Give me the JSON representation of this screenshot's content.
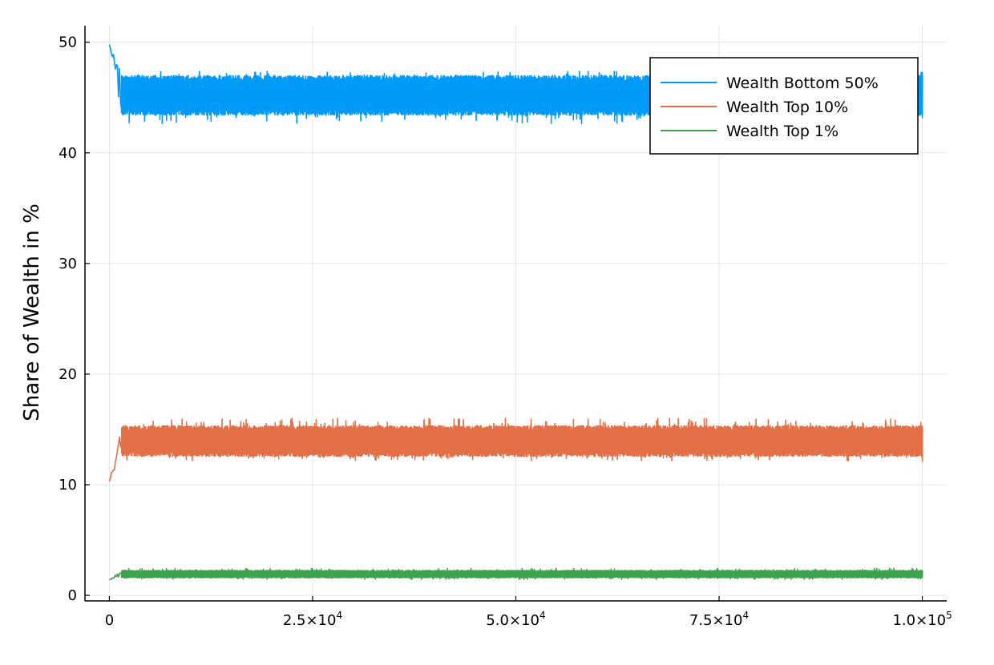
{
  "chart_data": {
    "type": "line",
    "title": "",
    "xlabel": "",
    "ylabel": "Share of Wealth in %",
    "xlim": [
      -3000,
      103000
    ],
    "ylim": [
      -0.5,
      51.5
    ],
    "x_ticks": [
      {
        "value": 0,
        "mantissa": "0",
        "exp": ""
      },
      {
        "value": 25000,
        "mantissa": "2.5×10",
        "exp": "4"
      },
      {
        "value": 50000,
        "mantissa": "5.0×10",
        "exp": "4"
      },
      {
        "value": 75000,
        "mantissa": "7.5×10",
        "exp": "4"
      },
      {
        "value": 100000,
        "mantissa": "1.0×10",
        "exp": "5"
      }
    ],
    "y_ticks": [
      0,
      10,
      20,
      30,
      40,
      50
    ],
    "grid": true,
    "legend": "top-right",
    "series": [
      {
        "name": "Wealth Bottom 50%",
        "color": "#009af9",
        "start": 49.8,
        "mean": 45.2,
        "low": 43.2,
        "high": 47.2,
        "extreme_low": 42.4,
        "extreme_high": 47.6,
        "end": [
          43.2,
          47.3
        ]
      },
      {
        "name": "Wealth Top 10%",
        "color": "#e26f46",
        "start": 10.3,
        "mean": 13.9,
        "low": 12.4,
        "high": 15.5,
        "extreme_low": 12.0,
        "extreme_high": 16.2,
        "end": [
          12.1,
          15.3
        ]
      },
      {
        "name": "Wealth Top 1%",
        "color": "#3da44d",
        "start": 1.4,
        "mean": 1.9,
        "low": 1.55,
        "high": 2.3,
        "extreme_low": 1.4,
        "extreme_high": 2.5,
        "end": [
          1.6,
          2.2
        ]
      }
    ]
  }
}
